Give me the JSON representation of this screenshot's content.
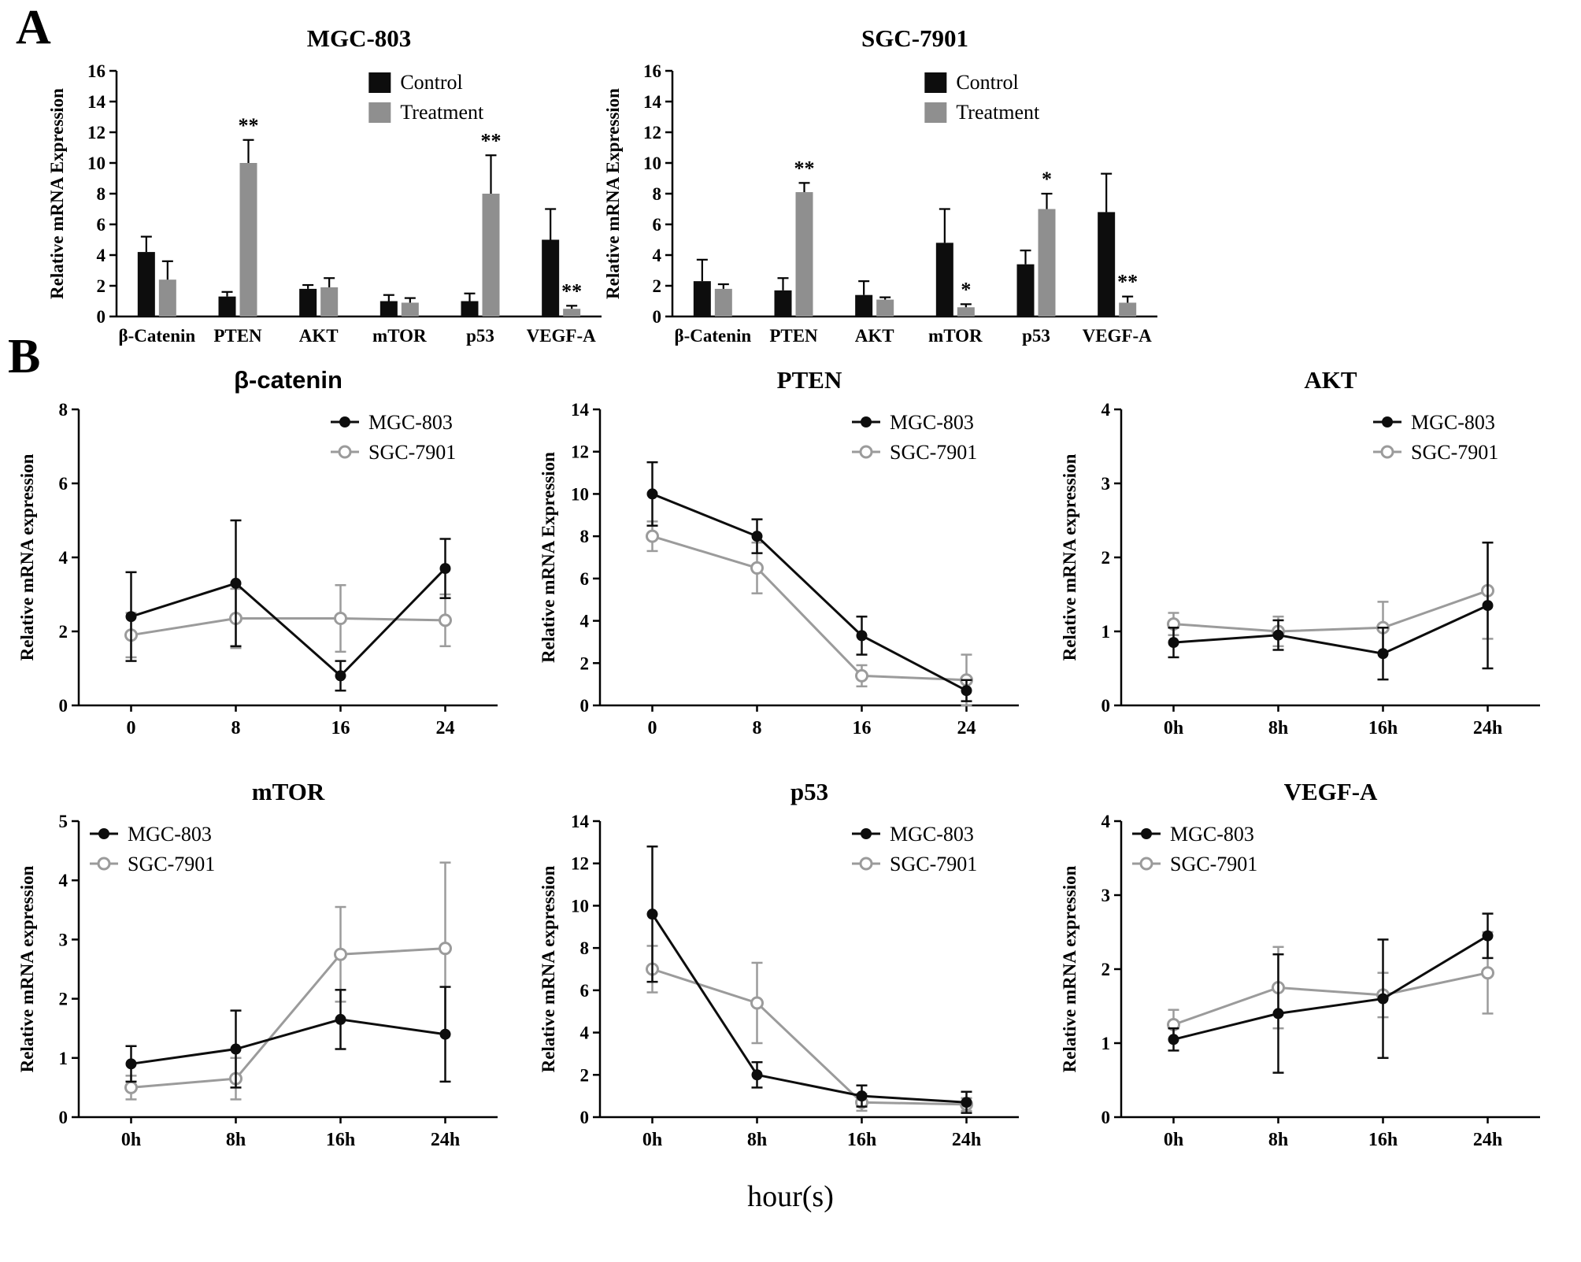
{
  "figure": {
    "panel_a_label": "A",
    "panel_b_label": "B",
    "panel_b_xlabel": "hour(s)"
  },
  "colors": {
    "control": "#0d0d0d",
    "treatment": "#8f8f8f",
    "mgc_803": "#0d0d0d",
    "sgc_7901": "#9b9b9b"
  },
  "chart_data": [
    {
      "type": "bar",
      "title": "MGC-803",
      "ylabel": "Relative mRNA Expression",
      "ylim": [
        0,
        16
      ],
      "ytick_step": 2,
      "categories": [
        "β-Catenin",
        "PTEN",
        "AKT",
        "mTOR",
        "p53",
        "VEGF-A"
      ],
      "series": [
        {
          "name": "Control",
          "color": "#0d0d0d",
          "values": [
            4.2,
            1.3,
            1.8,
            1.0,
            1.0,
            5.0
          ],
          "errors": [
            1.0,
            0.3,
            0.25,
            0.4,
            0.5,
            2.0
          ]
        },
        {
          "name": "Treatment",
          "color": "#8f8f8f",
          "values": [
            2.4,
            10.0,
            1.9,
            0.9,
            8.0,
            0.5
          ],
          "errors": [
            1.2,
            1.5,
            0.6,
            0.3,
            2.5,
            0.2
          ]
        }
      ],
      "significance": [
        {
          "category": "PTEN",
          "series": "Treatment",
          "label": "**"
        },
        {
          "category": "p53",
          "series": "Treatment",
          "label": "**"
        },
        {
          "category": "VEGF-A",
          "series": "Treatment",
          "label": "**"
        }
      ],
      "legend_pos": "right"
    },
    {
      "type": "bar",
      "title": "SGC-7901",
      "ylabel": "Relative mRNA Expression",
      "ylim": [
        0,
        16
      ],
      "ytick_step": 2,
      "categories": [
        "β-Catenin",
        "PTEN",
        "AKT",
        "mTOR",
        "p53",
        "VEGF-A"
      ],
      "series": [
        {
          "name": "Control",
          "color": "#0d0d0d",
          "values": [
            2.3,
            1.7,
            1.4,
            4.8,
            3.4,
            6.8
          ],
          "errors": [
            1.4,
            0.8,
            0.9,
            2.2,
            0.9,
            2.5
          ]
        },
        {
          "name": "Treatment",
          "color": "#8f8f8f",
          "values": [
            1.8,
            8.1,
            1.1,
            0.6,
            7.0,
            0.9
          ],
          "errors": [
            0.3,
            0.6,
            0.15,
            0.2,
            1.0,
            0.4
          ]
        }
      ],
      "significance": [
        {
          "category": "PTEN",
          "series": "Treatment",
          "label": "**"
        },
        {
          "category": "mTOR",
          "series": "Treatment",
          "label": "*"
        },
        {
          "category": "p53",
          "series": "Treatment",
          "label": "*"
        },
        {
          "category": "VEGF-A",
          "series": "Treatment",
          "label": "**"
        }
      ],
      "legend_pos": "right"
    },
    {
      "type": "line",
      "title": "β-catenin",
      "ylabel": "Relative mRNA expression",
      "ylim": [
        0,
        8
      ],
      "ytick_step": 2,
      "x_labels": [
        "0",
        "8",
        "16",
        "24"
      ],
      "series": [
        {
          "name": "MGC-803",
          "color": "#0d0d0d",
          "marker": "filled",
          "values": [
            2.4,
            3.3,
            0.8,
            3.7
          ],
          "errors": [
            1.2,
            1.7,
            0.4,
            0.8
          ]
        },
        {
          "name": "SGC-7901",
          "color": "#9b9b9b",
          "marker": "open",
          "values": [
            1.9,
            2.35,
            2.35,
            2.3
          ],
          "errors": [
            0.6,
            0.8,
            0.9,
            0.7
          ]
        }
      ],
      "legend_pos": "right"
    },
    {
      "type": "line",
      "title": "PTEN",
      "ylabel": "Relative mRNA Expression",
      "ylim": [
        0,
        14
      ],
      "ytick_step": 2,
      "x_labels": [
        "0",
        "8",
        "16",
        "24"
      ],
      "series": [
        {
          "name": "MGC-803",
          "color": "#0d0d0d",
          "marker": "filled",
          "values": [
            10.0,
            8.0,
            3.3,
            0.7
          ],
          "errors": [
            1.5,
            0.8,
            0.9,
            0.5
          ]
        },
        {
          "name": "SGC-7901",
          "color": "#9b9b9b",
          "marker": "open",
          "values": [
            8.0,
            6.5,
            1.4,
            1.2
          ],
          "errors": [
            0.7,
            1.2,
            0.5,
            1.2
          ]
        }
      ],
      "legend_pos": "right"
    },
    {
      "type": "line",
      "title": "AKT",
      "ylabel": "Relative mRNA expression",
      "ylim": [
        0,
        4
      ],
      "ytick_step": 1,
      "x_labels": [
        "0h",
        "8h",
        "16h",
        "24h"
      ],
      "series": [
        {
          "name": "MGC-803",
          "color": "#0d0d0d",
          "marker": "filled",
          "values": [
            0.85,
            0.95,
            0.7,
            1.35
          ],
          "errors": [
            0.2,
            0.2,
            0.35,
            0.85
          ]
        },
        {
          "name": "SGC-7901",
          "color": "#9b9b9b",
          "marker": "open",
          "values": [
            1.1,
            1.0,
            1.05,
            1.55
          ],
          "errors": [
            0.15,
            0.2,
            0.35,
            0.65
          ]
        }
      ],
      "legend_pos": "right"
    },
    {
      "type": "line",
      "title": "mTOR",
      "ylabel": "Relative mRNA expression",
      "ylim": [
        0,
        5
      ],
      "ytick_step": 1,
      "x_labels": [
        "0h",
        "8h",
        "16h",
        "24h"
      ],
      "series": [
        {
          "name": "MGC-803",
          "color": "#0d0d0d",
          "marker": "filled",
          "values": [
            0.9,
            1.15,
            1.65,
            1.4
          ],
          "errors": [
            0.3,
            0.65,
            0.5,
            0.8
          ]
        },
        {
          "name": "SGC-7901",
          "color": "#9b9b9b",
          "marker": "open",
          "values": [
            0.5,
            0.65,
            2.75,
            2.85
          ],
          "errors": [
            0.2,
            0.35,
            0.8,
            1.45
          ]
        }
      ],
      "legend_pos": "left"
    },
    {
      "type": "line",
      "title": "p53",
      "ylabel": "Relative mRNA expression",
      "ylim": [
        0,
        14
      ],
      "ytick_step": 2,
      "x_labels": [
        "0h",
        "8h",
        "16h",
        "24h"
      ],
      "series": [
        {
          "name": "MGC-803",
          "color": "#0d0d0d",
          "marker": "filled",
          "values": [
            9.6,
            2.0,
            1.0,
            0.7
          ],
          "errors": [
            3.2,
            0.6,
            0.5,
            0.5
          ]
        },
        {
          "name": "SGC-7901",
          "color": "#9b9b9b",
          "marker": "open",
          "values": [
            7.0,
            5.4,
            0.7,
            0.6
          ],
          "errors": [
            1.1,
            1.9,
            0.4,
            0.3
          ]
        }
      ],
      "legend_pos": "right"
    },
    {
      "type": "line",
      "title": "VEGF-A",
      "ylabel": "Relative mRNA expression",
      "ylim": [
        0,
        4
      ],
      "ytick_step": 1,
      "x_labels": [
        "0h",
        "8h",
        "16h",
        "24h"
      ],
      "series": [
        {
          "name": "MGC-803",
          "color": "#0d0d0d",
          "marker": "filled",
          "values": [
            1.05,
            1.4,
            1.6,
            2.45
          ],
          "errors": [
            0.15,
            0.8,
            0.8,
            0.3
          ]
        },
        {
          "name": "SGC-7901",
          "color": "#9b9b9b",
          "marker": "open",
          "values": [
            1.25,
            1.75,
            1.65,
            1.95
          ],
          "errors": [
            0.2,
            0.55,
            0.3,
            0.55
          ]
        }
      ],
      "legend_pos": "left"
    }
  ]
}
